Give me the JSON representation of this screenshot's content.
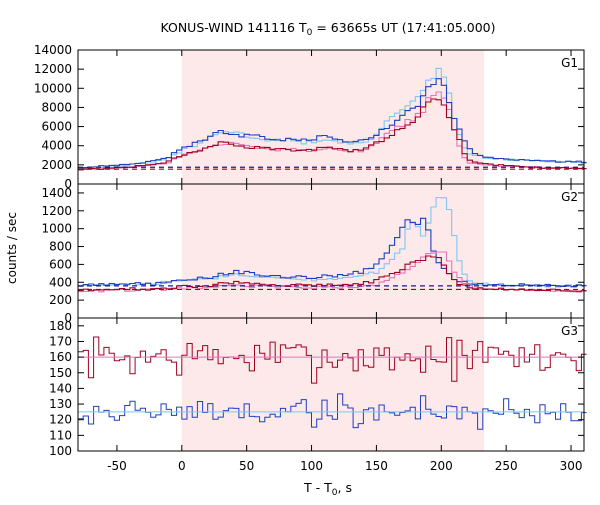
{
  "chart_data": {
    "type": "line",
    "title": "KONUS-WIND 141116 T",
    "title_sub": "0",
    "title_tail": " = 63665s UT (17:41:05.000)",
    "xlabel": "T - T",
    "xlabel_sub": "0",
    "xlabel_tail": ", s",
    "ylabel": "counts / sec",
    "xlim": [
      -80,
      310
    ],
    "xticks": [
      "-50",
      "0",
      "50",
      "100",
      "150",
      "200",
      "250",
      "300"
    ],
    "xtick_values": [
      -50,
      0,
      50,
      100,
      150,
      200,
      250,
      300
    ],
    "shaded_interval": [
      0,
      233
    ],
    "colors": {
      "shade": "#fde8ea",
      "frame": "#000000",
      "light_blue": "#7ec8f0",
      "blue": "#1f3fbf",
      "pink": "#e674b8",
      "dark_red": "#a00020",
      "dashed_blue": "#1a1a8c",
      "dashed_red": "#a00020"
    },
    "panels": [
      {
        "name": "G1",
        "ylim": [
          0,
          14000
        ],
        "yticks": [
          "0",
          "2000",
          "4000",
          "6000",
          "8000",
          "10000",
          "12000",
          "14000"
        ],
        "ytick_values": [
          0,
          2000,
          4000,
          6000,
          8000,
          10000,
          12000,
          14000
        ],
        "series": [
          {
            "color": "light_blue",
            "bin": 4,
            "x": [
              -80,
              -60,
              -40,
              -20,
              -10,
              0,
              10,
              20,
              30,
              40,
              50,
              60,
              70,
              80,
              90,
              100,
              110,
              120,
              130,
              140,
              150,
              160,
              170,
              180,
              185,
              190,
              195,
              200,
              205,
              210,
              215,
              220,
              230,
              240,
              260,
              280,
              300,
              310
            ],
            "y": [
              1700,
              1800,
              2000,
              2300,
              2700,
              3500,
              4000,
              4700,
              5400,
              5500,
              5000,
              4800,
              4500,
              4700,
              4300,
              4400,
              4600,
              4500,
              4200,
              4300,
              5000,
              7000,
              8000,
              8800,
              9300,
              10500,
              11500,
              11800,
              9800,
              7000,
              4500,
              3200,
              2900,
              2600,
              2500,
              2400,
              2300,
              2200
            ]
          },
          {
            "color": "pink",
            "bin": 4,
            "x": [
              -80,
              -60,
              -40,
              -20,
              -10,
              0,
              10,
              20,
              30,
              40,
              50,
              60,
              70,
              80,
              90,
              100,
              110,
              120,
              130,
              140,
              150,
              160,
              170,
              180,
              185,
              190,
              195,
              200,
              205,
              210,
              215,
              220,
              230,
              240,
              260,
              280,
              300,
              310
            ],
            "y": [
              1500,
              1600,
              1750,
              2000,
              2300,
              3000,
              3300,
              3800,
              4100,
              4300,
              4000,
              3800,
              3500,
              3700,
              3600,
              3500,
              3800,
              3600,
              3400,
              3500,
              4200,
              5600,
              6200,
              7000,
              7400,
              8800,
              9500,
              9900,
              8200,
              5800,
              3600,
              2300,
              2100,
              1900,
              1800,
              1700,
              1650,
              1600
            ]
          },
          {
            "color": "blue",
            "bin": 4,
            "x": [
              -80,
              -60,
              -40,
              -20,
              -10,
              0,
              10,
              20,
              30,
              40,
              50,
              60,
              70,
              80,
              90,
              100,
              110,
              120,
              130,
              140,
              150,
              160,
              170,
              180,
              190,
              200,
              210,
              220,
              230,
              240,
              260,
              280,
              300
            ],
            "y": [
              1700,
              1900,
              2100,
              2400,
              2800,
              3800,
              4200,
              4600,
              5600,
              5200,
              5000,
              5000,
              4600,
              4700,
              4400,
              4700,
              5000,
              4600,
              4500,
              4600,
              5200,
              6000,
              7400,
              8000,
              10000,
              11000,
              7000,
              3800,
              2900,
              2700,
              2500,
              2400,
              2300
            ]
          },
          {
            "color": "dark_red",
            "bin": 4,
            "x": [
              -80,
              -60,
              -40,
              -20,
              -10,
              0,
              10,
              20,
              30,
              40,
              50,
              60,
              70,
              80,
              90,
              100,
              110,
              120,
              130,
              140,
              150,
              160,
              170,
              180,
              190,
              200,
              210,
              220,
              230,
              240,
              260,
              280,
              300
            ],
            "y": [
              1500,
              1600,
              1800,
              2000,
              2400,
              3000,
              3400,
              3800,
              4400,
              4000,
              3800,
              3900,
              3600,
              3700,
              3500,
              3600,
              3900,
              3600,
              3500,
              3700,
              4300,
              5000,
              6000,
              6800,
              8500,
              9200,
              5800,
              2600,
              2200,
              2000,
              1800,
              1700,
              1650
            ]
          }
        ],
        "dashed": [
          {
            "color": "dashed_blue",
            "y": 1750
          },
          {
            "color": "dashed_red",
            "y": 1550
          }
        ]
      },
      {
        "name": "G2",
        "ylim": [
          0,
          1500
        ],
        "yticks": [
          "0",
          "200",
          "400",
          "600",
          "800",
          "1000",
          "1200",
          "1400"
        ],
        "ytick_values": [
          0,
          200,
          400,
          600,
          800,
          1000,
          1200,
          1400
        ],
        "series": [
          {
            "color": "light_blue",
            "bin": 4,
            "x": [
              -80,
              -60,
              -40,
              -20,
              0,
              20,
              40,
              60,
              80,
              100,
              120,
              140,
              150,
              160,
              165,
              170,
              175,
              180,
              185,
              190,
              195,
              200,
              205,
              210,
              215,
              220,
              230,
              250,
              270,
              290,
              310
            ],
            "y": [
              370,
              375,
              380,
              390,
              410,
              440,
              480,
              460,
              440,
              430,
              440,
              470,
              520,
              620,
              700,
              800,
              1000,
              1150,
              900,
              1100,
              1300,
              1350,
              1250,
              900,
              600,
              420,
              380,
              370,
              360,
              360,
              360
            ]
          },
          {
            "color": "blue",
            "bin": 4,
            "x": [
              -80,
              -60,
              -40,
              -20,
              0,
              20,
              40,
              60,
              80,
              100,
              120,
              140,
              150,
              160,
              165,
              170,
              175,
              180,
              185,
              190,
              195,
              200,
              210,
              220,
              230,
              250,
              270,
              290,
              310
            ],
            "y": [
              360,
              380,
              390,
              380,
              420,
              450,
              520,
              490,
              450,
              460,
              470,
              520,
              600,
              750,
              900,
              1050,
              1100,
              1000,
              1150,
              950,
              700,
              600,
              420,
              390,
              380,
              375,
              370,
              365,
              360
            ]
          },
          {
            "color": "pink",
            "bin": 4,
            "x": [
              -80,
              -60,
              -40,
              -20,
              0,
              20,
              40,
              60,
              80,
              100,
              120,
              140,
              150,
              160,
              170,
              180,
              190,
              200,
              205,
              210,
              220,
              230,
              250,
              270,
              290,
              310
            ],
            "y": [
              300,
              305,
              310,
              315,
              330,
              340,
              360,
              355,
              345,
              340,
              345,
              350,
              370,
              430,
              520,
              600,
              700,
              750,
              680,
              500,
              360,
              330,
              315,
              310,
              305,
              300
            ]
          },
          {
            "color": "dark_red",
            "bin": 4,
            "x": [
              -80,
              -60,
              -40,
              -20,
              0,
              20,
              40,
              60,
              80,
              100,
              120,
              140,
              150,
              160,
              170,
              180,
              190,
              200,
              210,
              220,
              230,
              250,
              270,
              290,
              310
            ],
            "y": [
              310,
              320,
              330,
              320,
              350,
              360,
              400,
              380,
              360,
              370,
              370,
              390,
              420,
              480,
              560,
              620,
              680,
              650,
              420,
              340,
              330,
              320,
              315,
              310,
              305
            ]
          }
        ],
        "dashed": [
          {
            "color": "dashed_blue",
            "y": 360
          },
          {
            "color": "dashed_red",
            "y": 320
          }
        ]
      },
      {
        "name": "G3",
        "ylim": [
          100,
          185
        ],
        "yticks": [
          "100",
          "110",
          "120",
          "130",
          "140",
          "150",
          "160",
          "170",
          "180"
        ],
        "ytick_values": [
          100,
          110,
          120,
          130,
          140,
          150,
          160,
          170,
          180
        ],
        "noise_series": [
          {
            "color": "dark_red",
            "mean": 160,
            "amp": 10,
            "seed": 7,
            "bin": 4
          },
          {
            "color": "blue",
            "mean": 125,
            "amp": 8,
            "seed": 19,
            "bin": 4
          }
        ],
        "mean_lines": [
          {
            "color": "pink",
            "y": 160
          },
          {
            "color": "light_blue",
            "y": 125
          }
        ]
      }
    ]
  }
}
